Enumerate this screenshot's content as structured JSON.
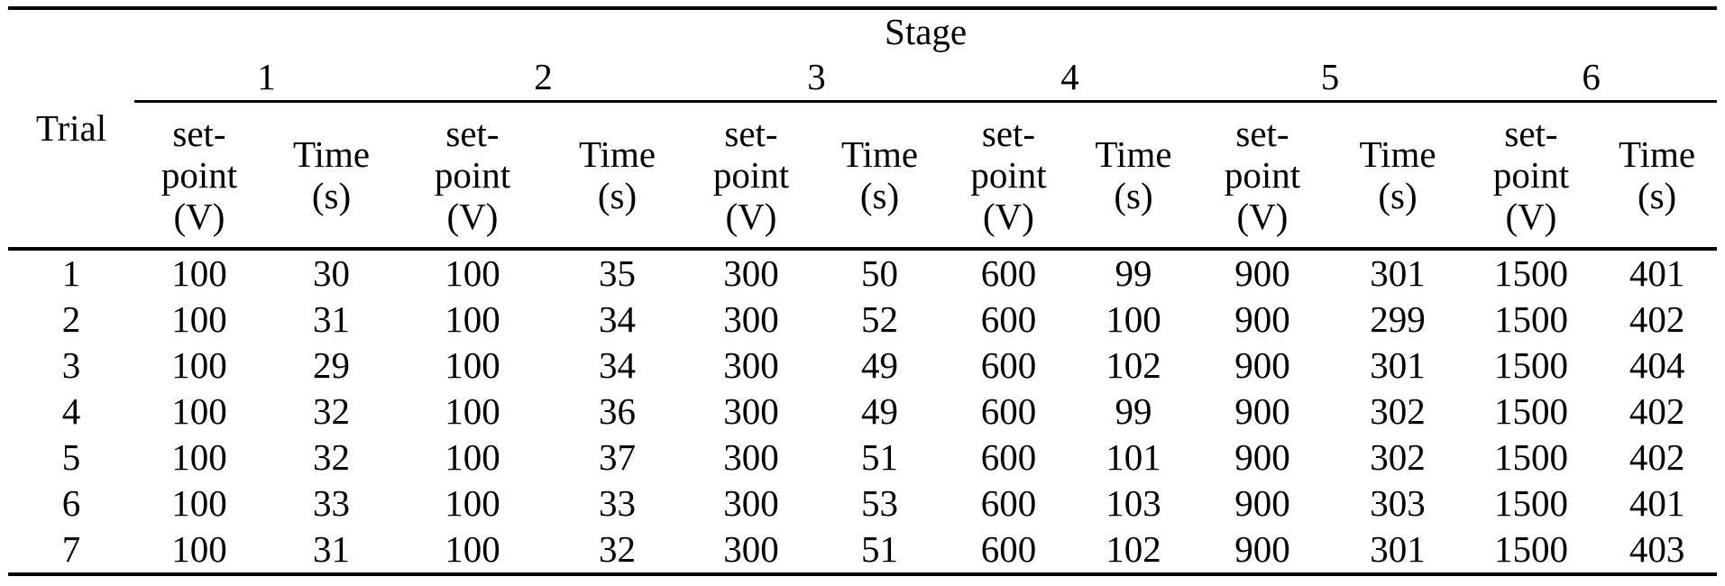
{
  "table": {
    "stage_header": "Stage",
    "trial_header": "Trial",
    "stage_numbers": [
      "1",
      "2",
      "3",
      "4",
      "5",
      "6"
    ],
    "setpoint_lines": [
      "set-",
      "point",
      "(V)"
    ],
    "time_lines": [
      "Time",
      "(s)"
    ],
    "rows": [
      [
        "1",
        "100",
        "30",
        "100",
        "35",
        "300",
        "50",
        "600",
        "99",
        "900",
        "301",
        "1500",
        "401"
      ],
      [
        "2",
        "100",
        "31",
        "100",
        "34",
        "300",
        "52",
        "600",
        "100",
        "900",
        "299",
        "1500",
        "402"
      ],
      [
        "3",
        "100",
        "29",
        "100",
        "34",
        "300",
        "49",
        "600",
        "102",
        "900",
        "301",
        "1500",
        "404"
      ],
      [
        "4",
        "100",
        "32",
        "100",
        "36",
        "300",
        "49",
        "600",
        "99",
        "900",
        "302",
        "1500",
        "402"
      ],
      [
        "5",
        "100",
        "32",
        "100",
        "37",
        "300",
        "51",
        "600",
        "101",
        "900",
        "302",
        "1500",
        "402"
      ],
      [
        "6",
        "100",
        "33",
        "100",
        "33",
        "300",
        "53",
        "600",
        "103",
        "900",
        "303",
        "1500",
        "401"
      ],
      [
        "7",
        "100",
        "31",
        "100",
        "32",
        "300",
        "51",
        "600",
        "102",
        "900",
        "301",
        "1500",
        "403"
      ]
    ]
  }
}
